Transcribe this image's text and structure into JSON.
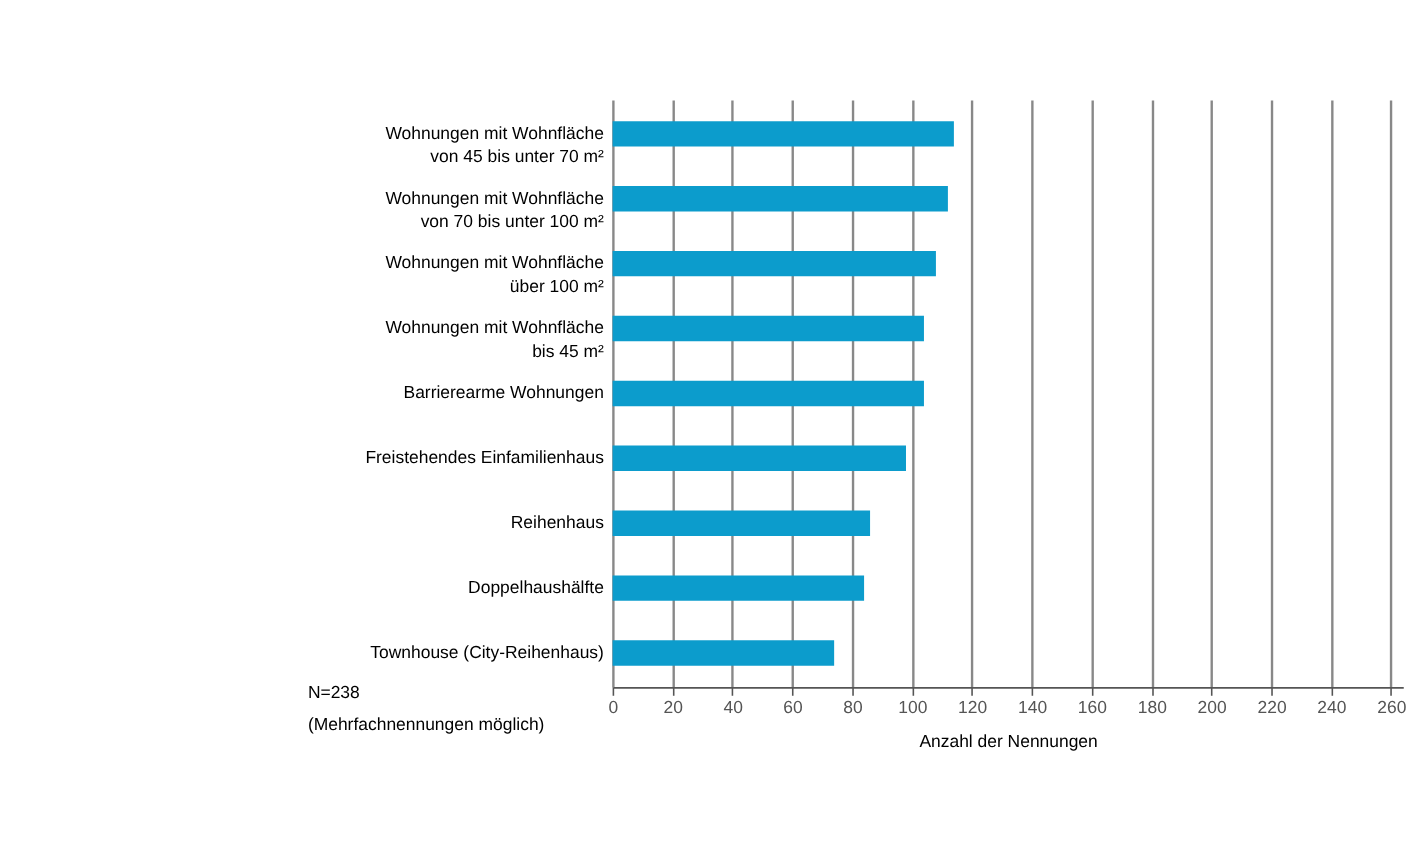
{
  "chart_data": {
    "type": "bar",
    "orientation": "horizontal",
    "categories": [
      "Wohnungen mit Wohnfläche\nvon 45 bis unter 70 m²",
      "Wohnungen mit Wohnfläche\nvon 70 bis unter 100 m²",
      "Wohnungen mit Wohnfläche\nüber 100 m²",
      "Wohnungen mit Wohnfläche\nbis 45 m²",
      "Barrierearme Wohnungen",
      "Freistehendes Einfamilienhaus",
      "Reihenhaus",
      "Doppelhaushälfte",
      "Townhouse (City-Reihenhaus)"
    ],
    "values": [
      114,
      112,
      108,
      104,
      104,
      98,
      86,
      84,
      74
    ],
    "color": "#0c9ccc",
    "xlim": [
      0,
      264
    ],
    "xticks": [
      0,
      20,
      40,
      60,
      80,
      100,
      120,
      140,
      160,
      180,
      200,
      220,
      240,
      260
    ],
    "xlabel": "Anzahl der Nennungen",
    "grid": "x",
    "annotations": [
      "N=238",
      "(Mehrfachnennungen möglich)"
    ]
  }
}
